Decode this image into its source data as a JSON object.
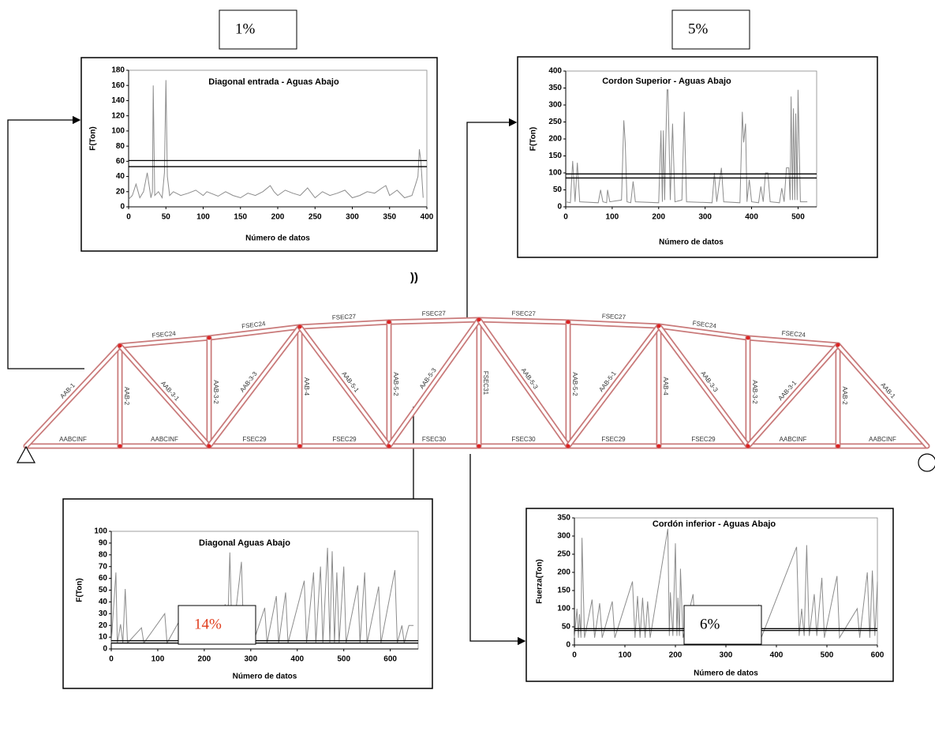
{
  "percent_boxes": [
    {
      "text": "1%",
      "color": "#000000"
    },
    {
      "text": "5%",
      "color": "#000000"
    },
    {
      "text": "14%",
      "color": "#e03c1c"
    },
    {
      "text": "6%",
      "color": "#000000"
    }
  ],
  "annotation": "))",
  "truss": {
    "top_chord": [
      "FSEC24",
      "FSEC24",
      "FSEC27",
      "FSEC27",
      "FSEC27",
      "FSEC27",
      "FSEC24",
      "FSEC24"
    ],
    "bottom_chord": [
      "AABCINF",
      "AABCINF",
      "FSEC29",
      "FSEC29",
      "FSEC30",
      "FSEC30",
      "FSEC29",
      "FSEC29",
      "AABCINF",
      "AABCINF"
    ],
    "verticals": [
      "AAB-2",
      "AAB-3-2",
      "AAB-4",
      "AAB-5-2",
      "FSEC31",
      "AAB-5-2",
      "AAB-4",
      "AAB-3-2",
      "AAB-2"
    ],
    "diagonals": [
      "AAB-1",
      "AAB-3-1",
      "AAB-3-3",
      "AAB-5-1",
      "AAB-5-3",
      "AAB-5-3",
      "AAB-5-1",
      "AAB-3-3",
      "AAB-3-1",
      "AAB-1"
    ]
  },
  "chart_data": [
    {
      "type": "line",
      "title": "Diagonal entrada  - Aguas Abajo",
      "x_label": "Número de datos",
      "y_label": "F(Ton)",
      "color": "#8c8c8c",
      "x": [
        0,
        5,
        10,
        15,
        20,
        25,
        30,
        32,
        33,
        35,
        40,
        45,
        48,
        50,
        52,
        55,
        60,
        70,
        80,
        90,
        100,
        105,
        110,
        120,
        130,
        140,
        150,
        160,
        170,
        180,
        190,
        195,
        200,
        210,
        220,
        230,
        240,
        250,
        260,
        270,
        280,
        290,
        300,
        310,
        320,
        330,
        340,
        345,
        350,
        360,
        370,
        380,
        385,
        388,
        390,
        392,
        395
      ],
      "values": [
        10,
        15,
        30,
        12,
        20,
        45,
        12,
        20,
        160,
        15,
        20,
        12,
        45,
        167,
        40,
        15,
        20,
        15,
        18,
        22,
        15,
        20,
        18,
        14,
        20,
        15,
        12,
        18,
        15,
        20,
        28,
        20,
        15,
        22,
        18,
        15,
        25,
        12,
        20,
        15,
        18,
        22,
        12,
        15,
        20,
        18,
        25,
        28,
        15,
        22,
        12,
        15,
        30,
        40,
        76,
        60,
        12
      ],
      "reference_lines": [
        61,
        53
      ],
      "reference_color": "#000000",
      "xlim": [
        0,
        400
      ],
      "xticks": [
        0,
        50,
        100,
        150,
        200,
        250,
        300,
        350,
        400
      ],
      "ylim": [
        0,
        180
      ],
      "yticks": [
        0,
        20,
        40,
        60,
        80,
        100,
        120,
        140,
        160,
        180
      ]
    },
    {
      "type": "line",
      "title": "Cordon Superior  - Aguas Abajo",
      "x_label": "Número de datos",
      "y_label": "F(Ton)",
      "color": "#8c8c8c",
      "x": [
        0,
        10,
        15,
        20,
        25,
        30,
        70,
        75,
        80,
        88,
        90,
        95,
        120,
        125,
        128,
        132,
        140,
        145,
        150,
        200,
        205,
        208,
        210,
        213,
        215,
        218,
        220,
        225,
        230,
        235,
        250,
        255,
        260,
        315,
        320,
        325,
        335,
        340,
        375,
        380,
        383,
        387,
        390,
        395,
        400,
        415,
        420,
        425,
        430,
        435,
        440,
        460,
        465,
        470,
        475,
        480,
        483,
        485,
        488,
        490,
        493,
        495,
        498,
        500,
        505,
        520
      ],
      "values": [
        15,
        12,
        135,
        15,
        130,
        15,
        12,
        50,
        15,
        12,
        50,
        15,
        20,
        255,
        190,
        15,
        12,
        75,
        15,
        12,
        225,
        15,
        225,
        20,
        170,
        345,
        345,
        20,
        245,
        15,
        20,
        280,
        15,
        12,
        100,
        15,
        115,
        15,
        12,
        280,
        190,
        245,
        15,
        80,
        15,
        12,
        60,
        15,
        100,
        100,
        15,
        12,
        55,
        15,
        115,
        115,
        20,
        325,
        20,
        290,
        20,
        275,
        20,
        345,
        15,
        15
      ],
      "reference_lines": [
        97,
        85
      ],
      "reference_color": "#000000",
      "xlim": [
        0,
        540
      ],
      "xticks": [
        0,
        100,
        200,
        300,
        400,
        500
      ],
      "ylim": [
        0,
        400
      ],
      "yticks": [
        0,
        50,
        100,
        150,
        200,
        250,
        300,
        350,
        400
      ]
    },
    {
      "type": "line",
      "title": "Diagonal Aguas Abajo",
      "x_label": "Número de datos",
      "y_label": "F(Ton)",
      "color": "#8c8c8c",
      "x": [
        0,
        10,
        13,
        20,
        25,
        30,
        35,
        65,
        70,
        115,
        120,
        155,
        160,
        180,
        185,
        215,
        220,
        225,
        230,
        245,
        250,
        255,
        260,
        280,
        285,
        300,
        305,
        330,
        335,
        355,
        360,
        375,
        380,
        415,
        420,
        435,
        440,
        450,
        455,
        465,
        470,
        475,
        480,
        485,
        490,
        500,
        505,
        530,
        535,
        545,
        550,
        575,
        580,
        610,
        615,
        625,
        630,
        640,
        650
      ],
      "values": [
        5,
        65,
        5,
        21,
        5,
        51,
        5,
        18,
        5,
        30,
        5,
        30,
        5,
        14,
        5,
        17,
        6,
        16,
        5,
        38,
        10,
        82,
        5,
        74,
        5,
        20,
        5,
        35,
        5,
        45,
        5,
        48,
        5,
        58,
        5,
        65,
        5,
        70,
        5,
        86,
        5,
        83,
        5,
        65,
        5,
        70,
        5,
        54,
        5,
        65,
        5,
        53,
        5,
        67,
        5,
        20,
        5,
        20,
        20
      ],
      "reference_lines": [
        7,
        5
      ],
      "reference_color": "#000000",
      "xlim": [
        0,
        660
      ],
      "xticks": [
        0,
        100,
        200,
        300,
        400,
        500,
        600
      ],
      "ylim": [
        0,
        100
      ],
      "yticks": [
        0,
        10,
        20,
        30,
        40,
        50,
        60,
        70,
        80,
        90,
        100
      ]
    },
    {
      "type": "line",
      "title": "Cordón inferior - Aguas Abajo",
      "x_label": "Número de datos",
      "y_label": "Fuerza(Ton)",
      "color": "#8c8c8c",
      "x": [
        0,
        5,
        8,
        10,
        13,
        15,
        20,
        35,
        40,
        50,
        55,
        75,
        80,
        115,
        120,
        125,
        130,
        135,
        140,
        145,
        150,
        185,
        188,
        190,
        195,
        200,
        203,
        205,
        208,
        210,
        215,
        235,
        240,
        265,
        270,
        300,
        305,
        320,
        325,
        365,
        370,
        440,
        445,
        450,
        455,
        460,
        465,
        475,
        480,
        490,
        495,
        520,
        525,
        560,
        565,
        580,
        585,
        590,
        595,
        600
      ],
      "values": [
        20,
        100,
        20,
        85,
        20,
        295,
        20,
        125,
        20,
        115,
        20,
        120,
        20,
        175,
        20,
        135,
        20,
        130,
        20,
        120,
        20,
        320,
        25,
        145,
        25,
        280,
        25,
        130,
        25,
        210,
        20,
        140,
        20,
        90,
        20,
        70,
        20,
        80,
        20,
        110,
        20,
        270,
        25,
        100,
        25,
        275,
        25,
        140,
        25,
        185,
        20,
        190,
        20,
        100,
        20,
        200,
        20,
        205,
        25,
        175
      ],
      "reference_lines": [
        45,
        40
      ],
      "reference_color": "#000000",
      "xlim": [
        0,
        600
      ],
      "xticks": [
        0,
        100,
        200,
        300,
        400,
        500,
        600
      ],
      "ylim": [
        0,
        350
      ],
      "yticks": [
        0,
        50,
        100,
        150,
        200,
        250,
        300,
        350
      ]
    }
  ]
}
